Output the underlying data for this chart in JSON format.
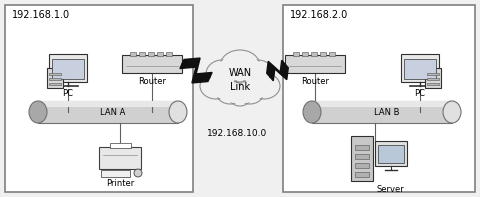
{
  "bg_color": "#f0f0f0",
  "box_color": "#ffffff",
  "box_border": "#808080",
  "lan_color": "#c8c8c8",
  "cloud_color": "#f0f0f0",
  "text_color": "#000000",
  "left_net": "192.168.1.0",
  "right_net": "192.168.2.0",
  "wan_net": "192.168.10.0",
  "wan_label": "WAN\nLink",
  "lan_a_label": "LAN A",
  "lan_b_label": "LAN B"
}
